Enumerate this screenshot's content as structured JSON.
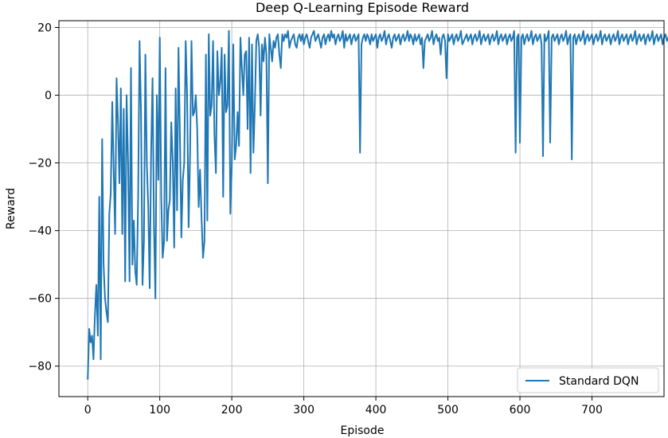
{
  "chart_data": {
    "type": "line",
    "title": "Deep Q-Learning Episode Reward",
    "xlabel": "Episode",
    "ylabel": "Reward",
    "xlim": [
      -40,
      800
    ],
    "ylim": [
      -89,
      22
    ],
    "xticks": [
      0,
      100,
      200,
      300,
      400,
      500,
      600,
      700
    ],
    "yticks": [
      -80,
      -60,
      -40,
      -20,
      0,
      20
    ],
    "grid": true,
    "legend_position": "bottom-right",
    "series": [
      {
        "name": "Standard DQN",
        "color": "#1f77b4",
        "x_start": 0,
        "x_step": 2,
        "values": [
          -84,
          -69,
          -73,
          -71,
          -78,
          -65,
          -56,
          -71,
          -30,
          -78,
          -13,
          -50,
          -60,
          -64,
          -67,
          -35,
          -29,
          -2,
          -22,
          -41,
          5,
          -8,
          -26,
          2,
          -41,
          -4,
          -55,
          0,
          -20,
          -55,
          8,
          -50,
          -37,
          -52,
          -56,
          -30,
          16,
          -5,
          -56,
          -43,
          12,
          -20,
          -33,
          -57,
          -17,
          5,
          -39,
          -60,
          0,
          -25,
          17,
          -30,
          -48,
          -43,
          8,
          -43,
          -34,
          -31,
          -8,
          -20,
          -45,
          2,
          -34,
          14,
          -12,
          -42,
          -25,
          -20,
          16,
          0,
          -39,
          -18,
          16,
          -6,
          -5,
          0,
          -10,
          -33,
          -22,
          -36,
          -48,
          -43,
          12,
          -37,
          18,
          -6,
          -3,
          16,
          -12,
          -23,
          13,
          0,
          4,
          14,
          -30,
          12,
          -5,
          -3,
          19,
          -35,
          -21,
          15,
          -19,
          -15,
          -5,
          -15,
          17,
          8,
          0,
          12,
          13,
          -10,
          17,
          -23,
          15,
          -17,
          -3,
          16,
          18,
          14,
          -6,
          15,
          10,
          17,
          12,
          -26,
          18,
          14,
          10,
          16,
          14,
          17,
          18,
          12,
          8,
          18,
          16,
          18,
          17,
          19,
          14,
          16,
          17,
          18,
          15,
          14,
          17,
          18,
          16,
          18,
          15,
          17,
          18,
          16,
          14,
          17,
          18,
          19,
          16,
          17,
          18,
          16,
          14,
          17,
          18,
          15,
          17,
          18,
          16,
          19,
          17,
          18,
          15,
          17,
          18,
          16,
          17,
          19,
          14,
          18,
          16,
          17,
          18,
          15,
          17,
          18,
          16,
          17,
          18,
          -17,
          15,
          17,
          18,
          16,
          18,
          17,
          15,
          18,
          16,
          17,
          18,
          14,
          17,
          18,
          16,
          17,
          19,
          15,
          17,
          18,
          16,
          14,
          17,
          18,
          16,
          17,
          18,
          15,
          17,
          18,
          16,
          17,
          19,
          16,
          18,
          17,
          15,
          18,
          16,
          17,
          18,
          15,
          17,
          8,
          16,
          17,
          18,
          16,
          17,
          19,
          15,
          17,
          18,
          16,
          17,
          12,
          17,
          18,
          16,
          5,
          18,
          16,
          17,
          18,
          15,
          17,
          18,
          16,
          17,
          19,
          15,
          16,
          17,
          18,
          16,
          17,
          18,
          15,
          17,
          18,
          16,
          17,
          19,
          15,
          17,
          18,
          16,
          17,
          18,
          15,
          17,
          18,
          16,
          17,
          19,
          15,
          17,
          18,
          16,
          17,
          18,
          15,
          17,
          18,
          16,
          17,
          19,
          -17,
          17,
          18,
          -14,
          17,
          18,
          15,
          17,
          18,
          16,
          17,
          19,
          15,
          17,
          18,
          16,
          17,
          18,
          15,
          -18,
          18,
          16,
          17,
          19,
          -14,
          17,
          18,
          16,
          17,
          18,
          15,
          17,
          18,
          16,
          17,
          19,
          15,
          17,
          18,
          -19,
          17,
          18,
          15,
          17,
          18,
          16,
          17,
          19,
          15,
          17,
          18,
          16,
          17,
          18,
          15,
          17,
          18,
          16,
          17,
          19,
          15,
          17,
          18,
          16,
          17,
          18,
          15,
          17,
          18,
          16,
          17,
          19,
          15,
          17,
          18,
          16,
          17,
          18,
          15,
          17,
          18,
          16,
          17,
          19,
          15,
          17,
          18,
          16,
          17,
          18,
          15,
          17,
          18,
          16,
          17,
          19,
          15,
          17,
          18,
          16,
          17,
          18,
          15,
          17,
          18,
          16,
          17,
          19,
          15,
          17,
          18,
          16,
          17,
          18,
          15,
          17,
          18,
          16,
          17,
          19,
          15,
          17,
          18,
          16,
          17,
          18,
          15,
          17,
          18,
          16,
          17,
          19
        ]
      }
    ]
  }
}
